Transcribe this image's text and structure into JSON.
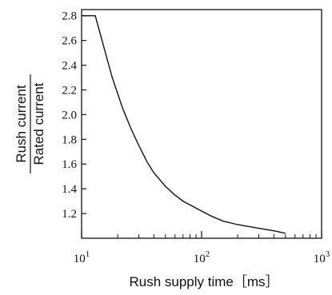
{
  "chart_data": {
    "type": "line",
    "title": "",
    "xlabel": "Rush supply time［ms］",
    "ylabel_numerator": "Rush current",
    "ylabel_denominator": "Rated current",
    "x_scale": "log",
    "xlim": [
      10,
      1000
    ],
    "ylim": [
      1.0,
      2.85
    ],
    "x_ticks": [
      {
        "value": 10,
        "base": "10",
        "exp": "1"
      },
      {
        "value": 100,
        "base": "10",
        "exp": "2"
      },
      {
        "value": 1000,
        "base": "10",
        "exp": "3"
      }
    ],
    "y_ticks": [
      "1.2",
      "1.4",
      "1.6",
      "1.8",
      "2.0",
      "2.2",
      "2.4",
      "2.6",
      "2.8"
    ],
    "grid": false,
    "series": [
      {
        "x": [
          10,
          13,
          15,
          18,
          22,
          26,
          30,
          35,
          40,
          50,
          60,
          70,
          80,
          100,
          120,
          150,
          200,
          300,
          400,
          500
        ],
        "y": [
          2.8,
          2.8,
          2.58,
          2.3,
          2.05,
          1.88,
          1.75,
          1.62,
          1.53,
          1.42,
          1.35,
          1.3,
          1.27,
          1.22,
          1.18,
          1.14,
          1.11,
          1.08,
          1.06,
          1.04
        ]
      }
    ]
  }
}
